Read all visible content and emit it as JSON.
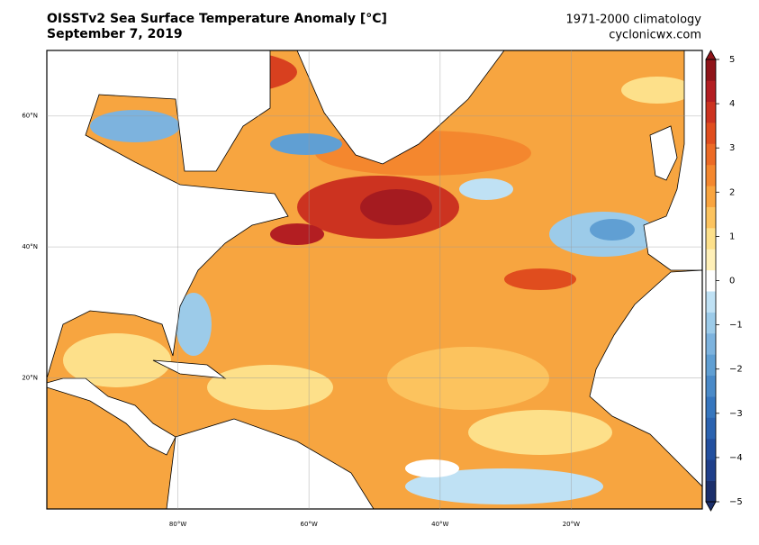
{
  "title": "OISSTv2 Sea Surface Temperature Anomaly [°C]",
  "subtitle": "September 7, 2019",
  "note": "1971-2000 climatology",
  "source": "cyclonicwx.com",
  "map": {
    "xlim": [
      -100,
      0
    ],
    "ylim": [
      0,
      70
    ],
    "xticks": [
      {
        "value": -80,
        "label": "80°W"
      },
      {
        "value": -60,
        "label": "60°W"
      },
      {
        "value": -40,
        "label": "40°W"
      },
      {
        "value": -20,
        "label": "20°W"
      }
    ],
    "yticks": [
      {
        "value": 20,
        "label": "20°N"
      },
      {
        "value": 40,
        "label": "40°N"
      },
      {
        "value": 60,
        "label": "60°N"
      }
    ],
    "grid": true
  },
  "colorbar": {
    "lim": [
      -5,
      5
    ],
    "ticks": [
      {
        "value": -5,
        "label": "−5"
      },
      {
        "value": -4,
        "label": "−4"
      },
      {
        "value": -3,
        "label": "−3"
      },
      {
        "value": -2,
        "label": "−2"
      },
      {
        "value": -1,
        "label": "−1"
      },
      0,
      1,
      2,
      3,
      4,
      5
    ],
    "colors": [
      "#1b2f6b",
      "#1f3f8a",
      "#23509f",
      "#2b63b0",
      "#3676be",
      "#4a8ac8",
      "#609fd3",
      "#7db3de",
      "#9ccbe9",
      "#bfe1f4",
      "#ffffff",
      "#fff0b8",
      "#fde08a",
      "#fcc35e",
      "#f9a43e",
      "#f4872e",
      "#ec6a25",
      "#e04d1e",
      "#cc3320",
      "#b31e22",
      "#8f1419"
    ]
  }
}
